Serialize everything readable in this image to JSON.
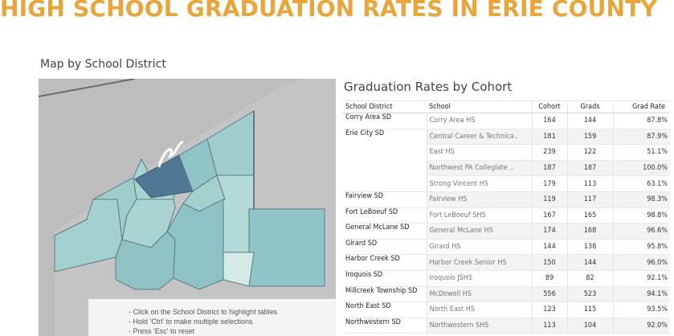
{
  "page": {
    "title": "HIGH SCHOOL GRADUATION RATES IN ERIE COUNTY"
  },
  "map": {
    "title": "Map by School District",
    "instructions": [
      "- Click on the School District to highlight tables",
      "- Hold 'Ctrl' to make multiple selections",
      "- Press 'Esc' to reset"
    ],
    "colors": {
      "highlight": "#4f7894",
      "low": "#d6ece6",
      "mid": "#a7d3cf",
      "high": "#8ec4c6",
      "lake": "#bababa",
      "outline": "#5a5a5a"
    }
  },
  "table": {
    "title": "Graduation Rates by Cohort",
    "columns": [
      "School District",
      "School",
      "Cohort",
      "Grads",
      "Grad Rate"
    ],
    "rows": [
      {
        "district": "Corry Area SD",
        "school": "Corry Area HS",
        "cohort": "164",
        "grads": "144",
        "rate": "87.8%"
      },
      {
        "district": "Erie City SD",
        "school": "Central Career & Technica..",
        "cohort": "181",
        "grads": "159",
        "rate": "87.9%"
      },
      {
        "district": "",
        "school": "East HS",
        "cohort": "239",
        "grads": "122",
        "rate": "51.1%"
      },
      {
        "district": "",
        "school": "Northwest PA Collegiate ..",
        "cohort": "187",
        "grads": "187",
        "rate": "100.0%"
      },
      {
        "district": "",
        "school": "Strong Vincent HS",
        "cohort": "179",
        "grads": "113",
        "rate": "63.1%"
      },
      {
        "district": "Fairview SD",
        "school": "Fairview HS",
        "cohort": "119",
        "grads": "117",
        "rate": "98.3%"
      },
      {
        "district": "Fort LeBoeuf SD",
        "school": "Fort LeBoeuf SHS",
        "cohort": "167",
        "grads": "165",
        "rate": "98.8%"
      },
      {
        "district": "General McLane SD",
        "school": "General McLane HS",
        "cohort": "174",
        "grads": "168",
        "rate": "96.6%"
      },
      {
        "district": "Girard SD",
        "school": "Girard HS",
        "cohort": "144",
        "grads": "138",
        "rate": "95.8%"
      },
      {
        "district": "Harbor Creek SD",
        "school": "Harbor Creek Senior HS",
        "cohort": "150",
        "grads": "144",
        "rate": "96.0%"
      },
      {
        "district": "Iroquois SD",
        "school": "Iroquois JSHS",
        "cohort": "89",
        "grads": "82",
        "rate": "92.1%"
      },
      {
        "district": "Millcreek Township SD",
        "school": "McDowell HS",
        "cohort": "556",
        "grads": "523",
        "rate": "94.1%"
      },
      {
        "district": "North East SD",
        "school": "North East HS",
        "cohort": "123",
        "grads": "115",
        "rate": "93.5%"
      },
      {
        "district": "Northwestern SD",
        "school": "Northwestern SHS",
        "cohort": "113",
        "grads": "104",
        "rate": "92.0%"
      }
    ]
  }
}
